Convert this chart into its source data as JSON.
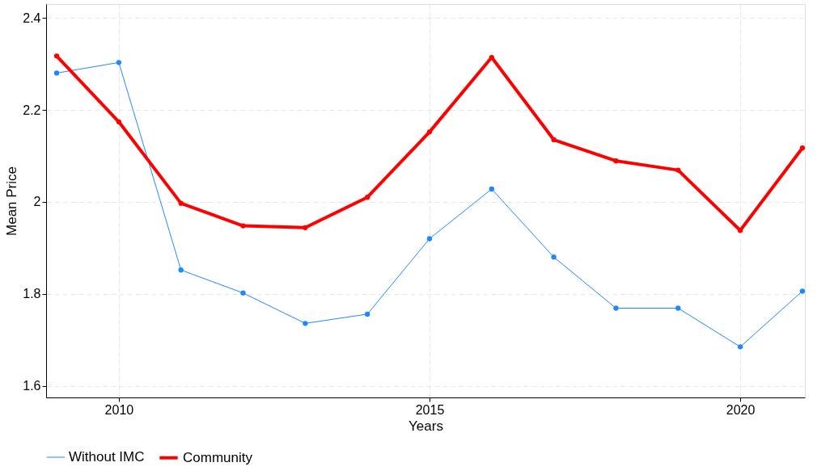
{
  "chart_data": {
    "type": "line",
    "xlabel": "Years",
    "ylabel": "Mean Price",
    "x": [
      2009,
      2010,
      2011,
      2012,
      2013,
      2014,
      2015,
      2016,
      2017,
      2018,
      2019,
      2020,
      2021
    ],
    "series": [
      {
        "name": "Without IMC",
        "color": "#1e88ff",
        "values": [
          2.28,
          2.303,
          1.852,
          1.802,
          1.736,
          1.756,
          1.92,
          2.028,
          1.88,
          1.769,
          1.769,
          1.685,
          1.806
        ]
      },
      {
        "name": "Community",
        "color": "#ff0000",
        "values": [
          2.317,
          2.174,
          1.997,
          1.948,
          1.944,
          2.01,
          2.152,
          2.314,
          2.135,
          2.089,
          2.069,
          1.938,
          2.117
        ]
      }
    ],
    "xlim": [
      2008.83,
      2021.04
    ],
    "ylim": [
      1.575,
      2.43
    ],
    "xticks": [
      2010,
      2015,
      2020
    ],
    "yticks": [
      1.6,
      1.8,
      2,
      2.2,
      2.4
    ],
    "grid": true,
    "legend": "bottom",
    "marker": "circle",
    "line_style": "solid"
  }
}
